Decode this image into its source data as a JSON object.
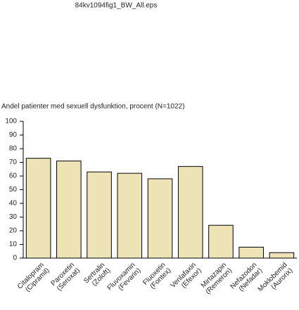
{
  "file_name": "84kv1094fig1_BW_All.eps",
  "chart_data": {
    "type": "bar",
    "title": "Andel patienter med sexuell dysfunktion, procent (N=1022)",
    "categories": [
      [
        "Citalopram",
        "(Cipramil)"
      ],
      [
        "Paroxetin",
        "(Seroxat)"
      ],
      [
        "Sertralin",
        "(Zoloft)"
      ],
      [
        "Fluvoxamin",
        "(Fevarin)"
      ],
      [
        "Fluoxetin",
        "(Fontex)"
      ],
      [
        "Venlafaxin",
        "(Efexor)"
      ],
      [
        "Mirtazapin",
        "(Remeron)"
      ],
      [
        "Nefazodon",
        "(Nefadar)"
      ],
      [
        "Moklobemid",
        "(Aurorix)"
      ]
    ],
    "values": [
      73,
      71,
      63,
      62,
      58,
      67,
      24,
      8,
      4
    ],
    "color": "#ede3b6",
    "ylim": [
      0,
      100
    ],
    "yticks": [
      0,
      10,
      20,
      30,
      40,
      50,
      60,
      70,
      80,
      90,
      100
    ]
  }
}
